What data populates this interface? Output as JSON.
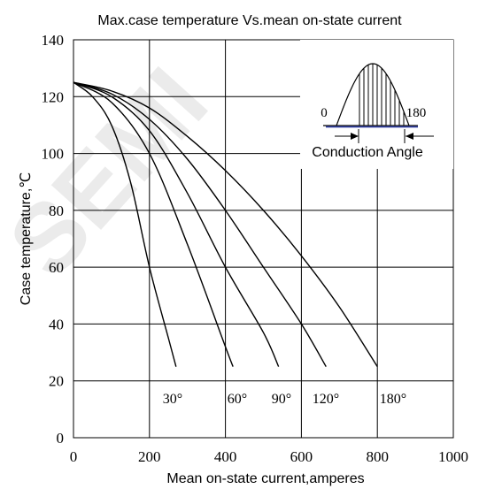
{
  "chart_data": {
    "type": "line",
    "title": "Max.case temperature Vs.mean on-state current",
    "xlabel": "Mean on-state current,amperes",
    "ylabel": "Case temperature,℃",
    "xlim": [
      0,
      1000
    ],
    "ylim": [
      0,
      140
    ],
    "x_ticks": [
      "0",
      "200",
      "400",
      "600",
      "800",
      "1000"
    ],
    "y_ticks": [
      "0",
      "20",
      "40",
      "60",
      "80",
      "100",
      "120",
      "140"
    ],
    "grid": true,
    "watermark": "SEMI",
    "series": [
      {
        "name": "30°",
        "x": [
          0,
          50,
          100,
          150,
          200,
          250,
          270
        ],
        "y": [
          125,
          120,
          110,
          90,
          60,
          35,
          25
        ]
      },
      {
        "name": "60°",
        "x": [
          0,
          100,
          200,
          300,
          400,
          420
        ],
        "y": [
          125,
          118,
          100,
          68,
          32,
          25
        ]
      },
      {
        "name": "90°",
        "x": [
          0,
          100,
          200,
          300,
          400,
          500,
          540
        ],
        "y": [
          125,
          120,
          108,
          86,
          60,
          37,
          25
        ]
      },
      {
        "name": "120°",
        "x": [
          0,
          100,
          200,
          300,
          400,
          500,
          600,
          665
        ],
        "y": [
          125,
          121,
          112,
          98,
          80,
          60,
          40,
          25
        ]
      },
      {
        "name": "180°",
        "x": [
          0,
          100,
          200,
          300,
          400,
          500,
          600,
          700,
          800
        ],
        "y": [
          125,
          122,
          116,
          106,
          94,
          80,
          64,
          46,
          25
        ]
      }
    ],
    "inset": {
      "label_left": "0",
      "label_right": "180",
      "caption": "Conduction Angle"
    }
  }
}
